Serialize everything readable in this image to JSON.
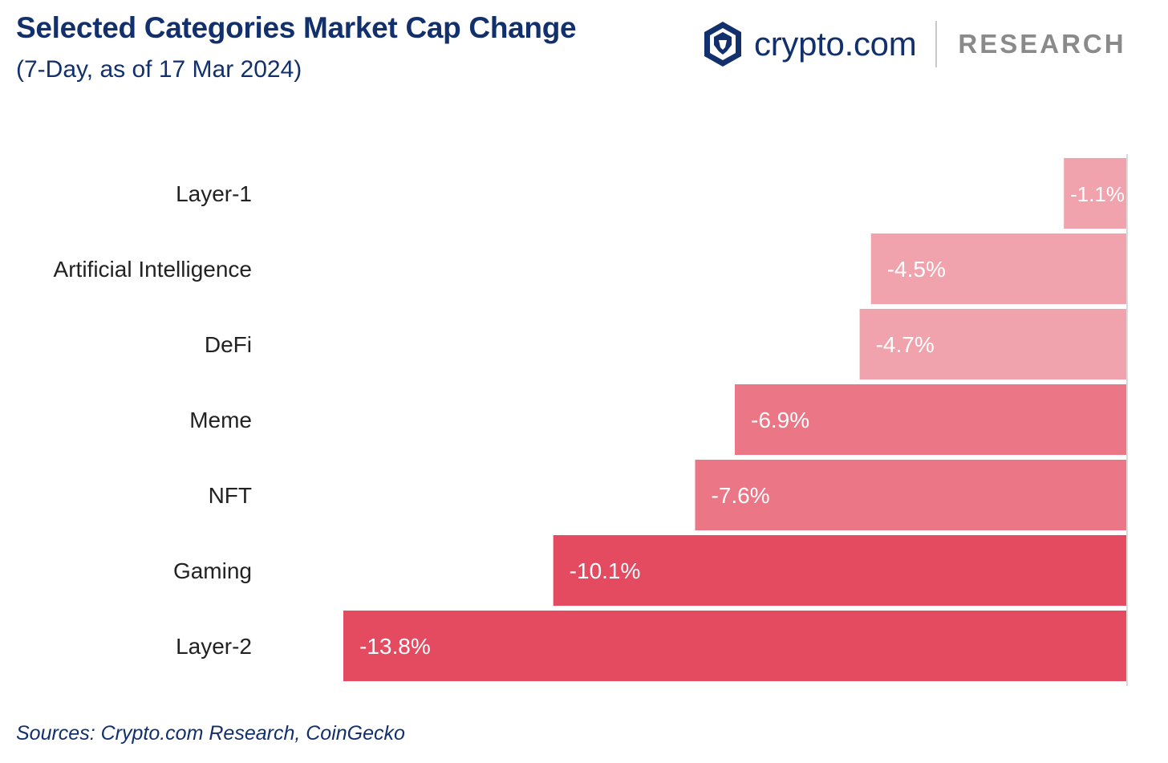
{
  "header": {
    "title": "Selected Categories Market Cap Change",
    "subtitle": "(7-Day, as of 17 Mar 2024)"
  },
  "brand": {
    "name": "crypto.com",
    "division": "RESEARCH",
    "logo_icon": "crypto-com-lion-shield-icon"
  },
  "footer": {
    "source": "Sources: Crypto.com Research, CoinGecko"
  },
  "colors": {
    "title": "#12306b",
    "bar_light": "#f0a3ad",
    "bar_mid": "#ea7686",
    "bar_dark": "#e44a60",
    "bar_label": "#ffffff",
    "category_label": "#222222"
  },
  "chart_data": {
    "type": "bar",
    "orientation": "horizontal",
    "title": "Selected Categories Market Cap Change",
    "subtitle": "(7-Day, as of 17 Mar 2024)",
    "xlabel": "",
    "ylabel": "",
    "xlim": [
      -13.8,
      0
    ],
    "grid": false,
    "legend": "none",
    "categories": [
      "Layer-1",
      "Artificial Intelligence",
      "DeFi",
      "Meme",
      "NFT",
      "Gaming",
      "Layer-2"
    ],
    "values": [
      -1.1,
      -4.5,
      -4.7,
      -6.9,
      -7.6,
      -10.1,
      -13.8
    ],
    "labels": [
      "-1.1%",
      "-4.5%",
      "-4.7%",
      "-6.9%",
      "-7.6%",
      "-10.1%",
      "-13.8%"
    ],
    "bar_colors": [
      "#f0a3ad",
      "#f0a3ad",
      "#f0a3ad",
      "#ea7686",
      "#ea7686",
      "#e44a60",
      "#e44a60"
    ]
  }
}
